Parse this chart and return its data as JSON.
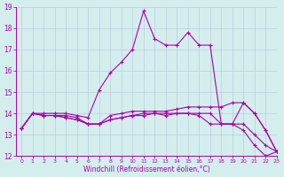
{
  "xlabel": "Windchill (Refroidissement éolien,°C)",
  "bg_color": "#d4eeee",
  "line_color": "#aa00aa",
  "grid_color": "#bbccdd",
  "xlim": [
    -0.5,
    23
  ],
  "ylim": [
    12,
    19
  ],
  "xticks": [
    0,
    1,
    2,
    3,
    4,
    5,
    6,
    7,
    8,
    9,
    10,
    11,
    12,
    13,
    14,
    15,
    16,
    17,
    18,
    19,
    20,
    21,
    22,
    23
  ],
  "yticks": [
    12,
    13,
    14,
    15,
    16,
    17,
    18,
    19
  ],
  "lines": [
    [
      13.3,
      14.0,
      13.9,
      13.9,
      13.9,
      13.8,
      13.5,
      13.5,
      13.9,
      14.0,
      14.1,
      14.1,
      14.1,
      14.1,
      14.2,
      14.3,
      14.3,
      14.3,
      14.3,
      14.5,
      14.5,
      14.0,
      13.2,
      12.2
    ],
    [
      13.3,
      14.0,
      14.0,
      14.0,
      14.0,
      13.9,
      13.8,
      15.1,
      15.9,
      16.4,
      17.0,
      18.8,
      17.5,
      17.2,
      17.2,
      17.8,
      17.2,
      17.2,
      13.5,
      13.5,
      14.5,
      14.0,
      13.2,
      12.2
    ],
    [
      13.3,
      14.0,
      13.9,
      13.9,
      13.8,
      13.7,
      13.5,
      13.5,
      13.7,
      13.8,
      13.9,
      14.0,
      14.0,
      14.0,
      14.0,
      14.0,
      13.9,
      13.5,
      13.5,
      13.5,
      13.5,
      13.0,
      12.5,
      12.2
    ],
    [
      13.3,
      14.0,
      13.9,
      13.9,
      13.8,
      13.7,
      13.5,
      13.5,
      13.7,
      13.8,
      13.9,
      13.9,
      14.0,
      13.9,
      14.0,
      14.0,
      14.0,
      14.0,
      13.5,
      13.5,
      13.2,
      12.5,
      12.0,
      12.2
    ]
  ],
  "marker": "+",
  "markersize": 3,
  "linewidth": 0.8
}
